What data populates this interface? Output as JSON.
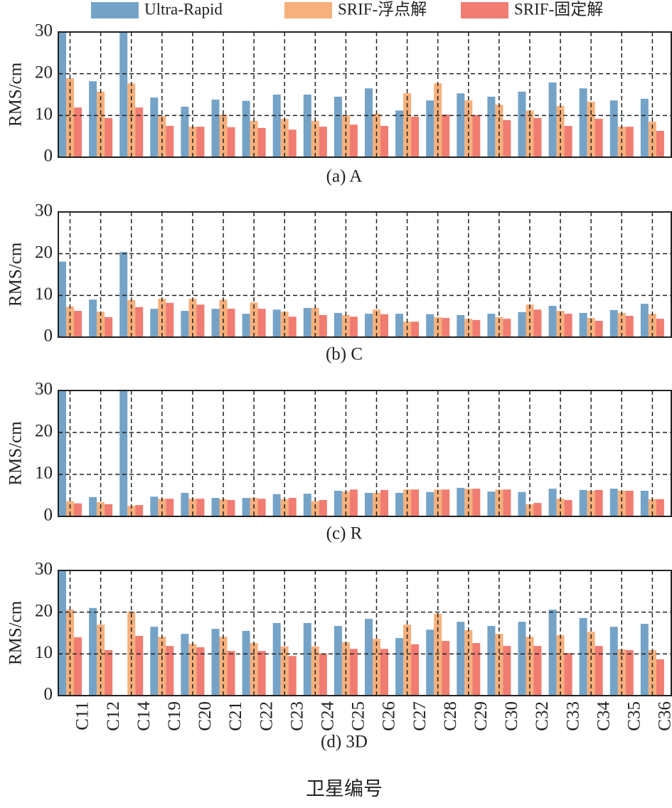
{
  "chart_data": [
    {
      "type": "bar",
      "caption": "(a) A",
      "ylabel": "RMS/cm",
      "ylim": [
        0,
        30
      ],
      "yticks": [
        0,
        10,
        20,
        30
      ],
      "grid": true,
      "series": [
        {
          "name": "Ultra-Rapid",
          "color": "#74a3c7",
          "values": [
            30,
            18.2,
            30,
            14.3,
            12.1,
            13.8,
            13.5,
            15.0,
            15.0,
            14.5,
            16.5,
            11.2,
            13.6,
            15.3,
            14.5,
            15.7,
            17.9,
            16.5,
            13.6,
            14.0
          ]
        },
        {
          "name": "SRIF-浮点解",
          "color": "#f7b07c",
          "values": [
            18.9,
            15.7,
            17.7,
            9.9,
            7.3,
            10.2,
            8.7,
            9.2,
            8.7,
            10.1,
            10.4,
            15.3,
            17.7,
            13.6,
            12.6,
            11.2,
            12.3,
            13.3,
            7.3,
            8.5
          ]
        },
        {
          "name": "SRIF-固定解",
          "color": "#f07c72",
          "values": [
            11.9,
            9.4,
            11.9,
            7.5,
            7.3,
            7.2,
            7.0,
            6.6,
            7.3,
            7.8,
            7.5,
            9.7,
            10.2,
            10.1,
            8.9,
            9.4,
            7.5,
            9.2,
            7.3,
            6.3
          ]
        }
      ]
    },
    {
      "type": "bar",
      "caption": "(b) C",
      "ylabel": "RMS/cm",
      "ylim": [
        0,
        30
      ],
      "yticks": [
        0,
        10,
        20,
        30
      ],
      "grid": true,
      "series": [
        {
          "values": [
            18.1,
            9.0,
            20.4,
            6.8,
            6.3,
            6.8,
            5.6,
            6.6,
            7.0,
            5.8,
            5.6,
            5.6,
            5.5,
            5.3,
            5.6,
            6.0,
            7.5,
            5.8,
            6.5,
            8.0
          ]
        },
        {
          "values": [
            7.3,
            6.1,
            8.9,
            9.2,
            9.2,
            9.0,
            8.3,
            6.1,
            7.0,
            5.3,
            6.6,
            3.7,
            4.8,
            4.4,
            4.8,
            7.8,
            6.3,
            4.6,
            5.8,
            5.6
          ]
        },
        {
          "values": [
            6.3,
            4.8,
            7.2,
            8.2,
            7.8,
            6.8,
            6.8,
            4.9,
            5.3,
            4.9,
            5.5,
            3.7,
            4.6,
            4.1,
            4.4,
            6.6,
            5.6,
            3.9,
            5.1,
            4.4
          ]
        }
      ]
    },
    {
      "type": "bar",
      "caption": "(c) R",
      "ylabel": "RMS/cm",
      "ylim": [
        0,
        30
      ],
      "yticks": [
        0,
        10,
        20,
        30
      ],
      "grid": true,
      "series": [
        {
          "values": [
            30,
            4.6,
            30,
            4.7,
            5.6,
            4.4,
            4.4,
            5.3,
            5.4,
            6.1,
            5.6,
            5.6,
            5.8,
            6.8,
            5.9,
            5.8,
            6.6,
            6.3,
            6.6,
            6.1
          ]
        },
        {
          "values": [
            3.6,
            3.4,
            2.5,
            4.2,
            4.2,
            4.1,
            4.4,
            4.1,
            3.6,
            5.9,
            5.6,
            6.4,
            6.4,
            6.6,
            6.4,
            2.9,
            4.2,
            6.1,
            6.1,
            4.1
          ]
        },
        {
          "values": [
            3.1,
            2.9,
            2.7,
            4.2,
            4.2,
            3.9,
            4.2,
            4.4,
            3.9,
            6.4,
            6.3,
            6.4,
            6.4,
            6.6,
            6.4,
            3.2,
            3.9,
            6.3,
            6.1,
            4.1
          ]
        }
      ]
    },
    {
      "type": "bar",
      "caption": "(d) 3D",
      "ylabel": "RMS/cm",
      "xlabel": "卫星编号",
      "ylim": [
        0,
        30
      ],
      "yticks": [
        0,
        10,
        20,
        30
      ],
      "grid": true,
      "categories": [
        "C11",
        "C12",
        "C14",
        "C19",
        "C20",
        "C21",
        "C22",
        "C23",
        "C24",
        "C25",
        "C26",
        "C27",
        "C28",
        "C29",
        "C30",
        "C32",
        "C33",
        "C34",
        "C35",
        "C36"
      ],
      "series": [
        {
          "values": [
            30,
            21.0,
            null,
            16.5,
            14.8,
            16.0,
            15.5,
            17.4,
            17.4,
            16.7,
            18.4,
            13.8,
            15.8,
            17.7,
            16.7,
            17.7,
            20.6,
            18.6,
            16.5,
            17.2
          ]
        },
        {
          "values": [
            20.6,
            17.0,
            20.1,
            14.1,
            12.4,
            14.1,
            12.6,
            11.8,
            11.8,
            12.8,
            13.6,
            17.0,
            19.6,
            15.7,
            14.8,
            14.1,
            14.5,
            15.3,
            11.1,
            10.9
          ]
        },
        {
          "values": [
            14.0,
            10.9,
            14.3,
            11.9,
            11.6,
            10.7,
            10.7,
            9.5,
            10.1,
            11.2,
            11.2,
            12.3,
            13.1,
            12.6,
            11.9,
            11.9,
            10.2,
            11.9,
            10.9,
            8.7
          ]
        }
      ]
    }
  ]
}
